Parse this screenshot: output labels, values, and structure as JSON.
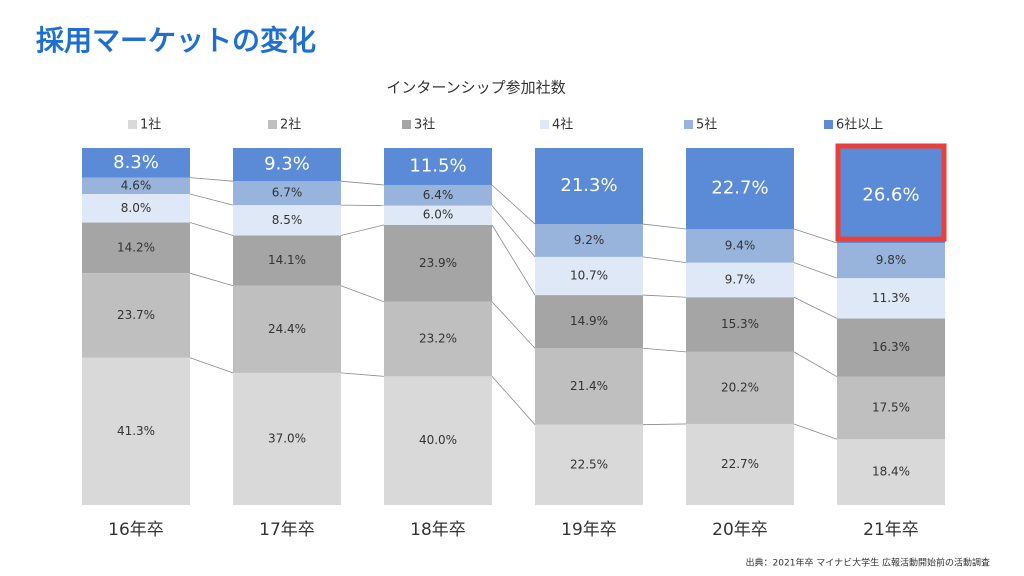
{
  "header": {
    "title": "採用マーケットの変化"
  },
  "chart_data": {
    "type": "bar",
    "title": "インターンシップ参加社数",
    "categories": [
      "16年卒",
      "17年卒",
      "18年卒",
      "19年卒",
      "20年卒",
      "21年卒"
    ],
    "series": [
      {
        "name": "1社",
        "color": "#d9d9d9",
        "values": [
          41.3,
          37.0,
          40.0,
          22.5,
          22.7,
          18.4
        ],
        "value_labels": [
          "41.3%",
          "37.0%",
          "40.0%",
          "22.5%",
          "22.7%",
          "18.4%"
        ]
      },
      {
        "name": "2社",
        "color": "#bfbfbf",
        "values": [
          23.7,
          24.4,
          23.2,
          21.4,
          20.2,
          17.5
        ],
        "value_labels": [
          "23.7%",
          "24.4%",
          "23.2%",
          "21.4%",
          "20.2%",
          "17.5%"
        ]
      },
      {
        "name": "3社",
        "color": "#a5a5a5",
        "values": [
          14.2,
          14.1,
          23.9,
          14.9,
          15.3,
          16.3
        ],
        "value_labels": [
          "14.2%",
          "14.1%",
          "23.9%",
          "14.9%",
          "15.3%",
          "16.3%"
        ]
      },
      {
        "name": "4社",
        "color": "#dfe8f6",
        "values": [
          8.0,
          8.5,
          6.0,
          10.7,
          9.7,
          11.3
        ],
        "value_labels": [
          "8.0%",
          "8.5%",
          "6.0%",
          "10.7%",
          "9.7%",
          "11.3%"
        ]
      },
      {
        "name": "5社",
        "color": "#98b4dc",
        "values": [
          4.6,
          6.7,
          6.4,
          9.2,
          9.4,
          9.8
        ],
        "value_labels": [
          "4.6%",
          "6.7%",
          "6.4%",
          "9.2%",
          "9.4%",
          "9.8%"
        ]
      },
      {
        "name": "6社以上",
        "color": "#5b8bd7",
        "values": [
          8.3,
          9.3,
          11.5,
          21.3,
          22.7,
          26.6
        ],
        "value_labels": [
          "8.3%",
          "9.3%",
          "11.5%",
          "21.3%",
          "22.7%",
          "26.6%"
        ]
      }
    ],
    "source": "出典：2021年卒 マイナビ大学生 広報活動開始前の活動調査"
  }
}
